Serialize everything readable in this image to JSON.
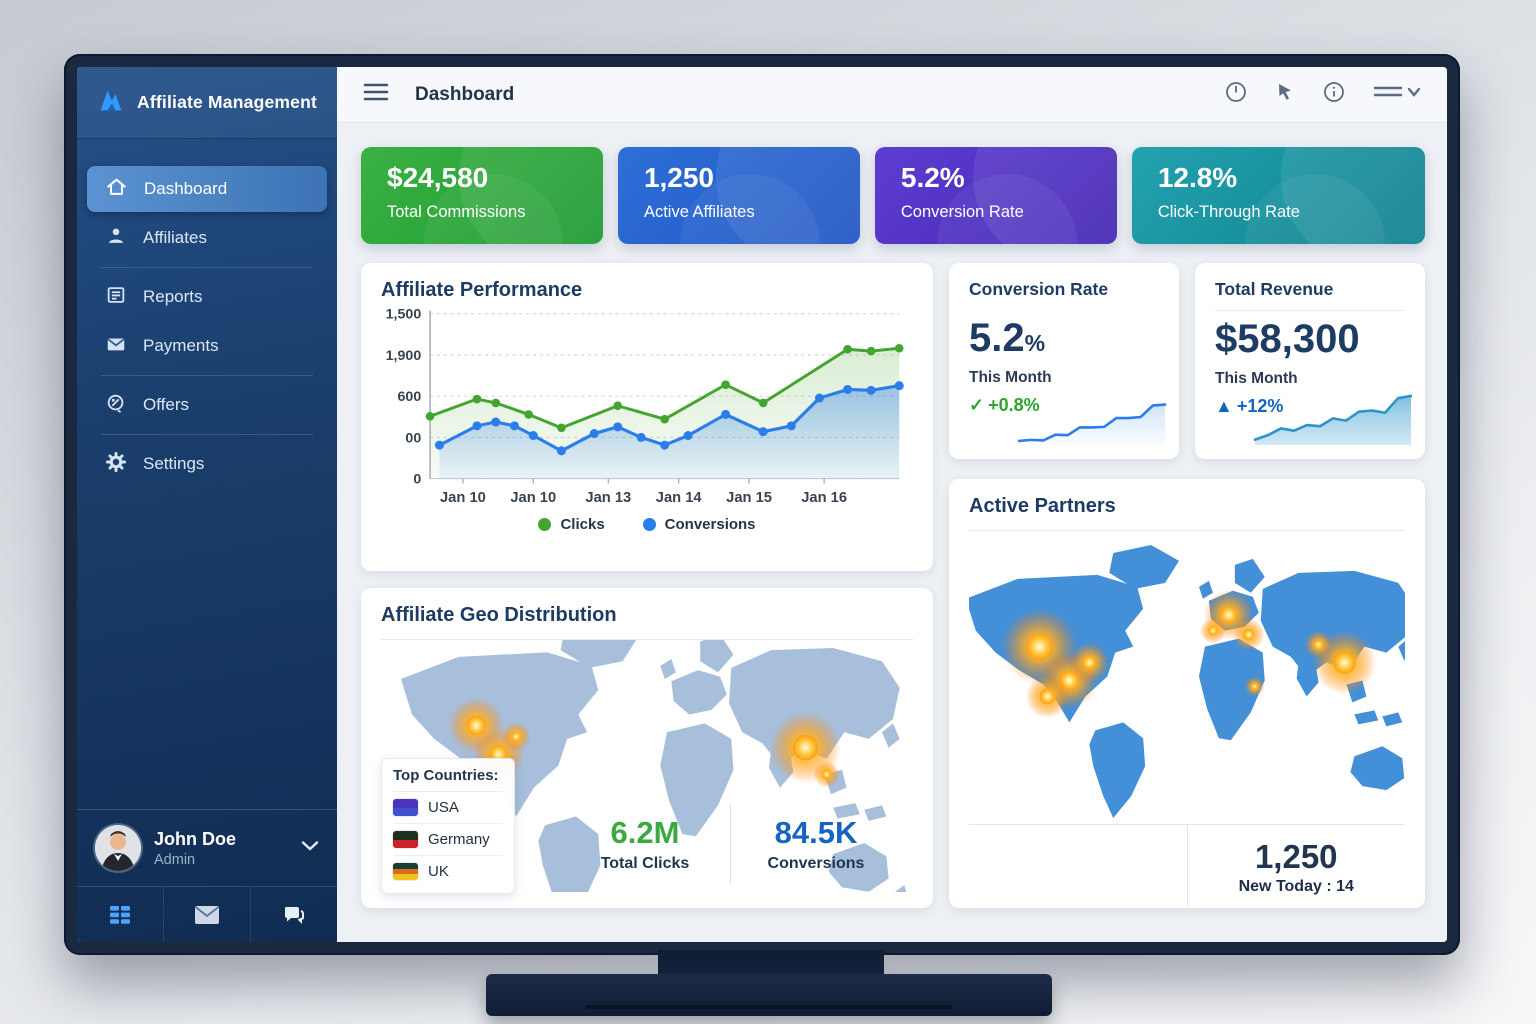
{
  "brand": {
    "name": "Affiliate Management",
    "logo_icon": "mountain-logo-icon"
  },
  "topbar": {
    "title": "Dashboard",
    "icons": [
      "hamburger-icon",
      "clock-icon",
      "cursor-icon",
      "info-icon",
      "menu-chevron-icon"
    ]
  },
  "sidebar": {
    "items": [
      {
        "label": "Dashboard",
        "icon": "home-icon",
        "active": true
      },
      {
        "label": "Affiliates",
        "icon": "person-icon",
        "active": false
      },
      {
        "label": "Reports",
        "icon": "report-icon",
        "active": false
      },
      {
        "label": "Payments",
        "icon": "envelope-icon",
        "active": false
      },
      {
        "label": "Offers",
        "icon": "offer-tag-icon",
        "active": false
      },
      {
        "label": "Settings",
        "icon": "gear-icon",
        "active": false
      }
    ],
    "user": {
      "name": "John Doe",
      "role": "Admin"
    },
    "footer_icons": [
      "grid-icon",
      "mail-icon",
      "chat-icon"
    ]
  },
  "stat_cards": [
    {
      "value": "$24,580",
      "label": "Total Commissions",
      "gradient": [
        "#3bb143",
        "#1c9a31"
      ]
    },
    {
      "value": "1,250",
      "label": "Active Affiliates",
      "gradient": [
        "#2e6fd8",
        "#1f55c2"
      ]
    },
    {
      "value": "5.2%",
      "label": "Conversion Rate",
      "gradient": [
        "#5d3ed1",
        "#4426b4"
      ]
    },
    {
      "value": "12.8%",
      "label": "Click-Through Rate",
      "gradient": [
        "#23a2af",
        "#0f818f"
      ]
    }
  ],
  "cards": {
    "performance": {
      "title": "Affiliate Performance"
    },
    "conversion": {
      "title": "Conversion Rate",
      "value": "5.2",
      "unit": "%",
      "period": "This Month",
      "delta_icon": "✓",
      "delta": "+0.8%",
      "delta_color": "#2ca52e"
    },
    "revenue": {
      "title": "Total Revenue",
      "value": "$58,300",
      "period": "This Month",
      "delta_icon": "▲",
      "delta": "+12%",
      "delta_color": "#1565c0"
    },
    "partners": {
      "title": "Active Partners",
      "count": "1,250",
      "sub": "New Today : 14"
    },
    "geo": {
      "title": "Affiliate Geo Distribution",
      "panel_title": "Top Countries:",
      "countries": [
        {
          "name": "USA",
          "flag": [
            "#4b34bb",
            "#3f51cc"
          ]
        },
        {
          "name": "Germany",
          "flag": [
            "#20301f",
            "#cc2127"
          ]
        },
        {
          "name": "UK",
          "flag": [
            "#173f38",
            "#d96a1e",
            "#eec51d"
          ]
        }
      ],
      "stats": [
        {
          "value": "6.2M",
          "label": "Total Clicks",
          "color": "#3aa93f"
        },
        {
          "value": "84.5K",
          "label": "Conversions",
          "color": "#1565c0"
        }
      ]
    }
  },
  "chart_data": [
    {
      "type": "line",
      "title": "Affiliate Performance",
      "x_ticks": [
        "Jan 10",
        "Jan 10",
        "Jan 13",
        "Jan 14",
        "Jan 15",
        "Jan 16"
      ],
      "y_tick_labels": [
        "1,500",
        "1,900",
        "600",
        "00",
        "0"
      ],
      "ylim": [
        0,
        1500
      ],
      "grid": true,
      "legend_position": "bottom",
      "series": [
        {
          "name": "Clicks",
          "color": "#43a52f",
          "points": [
            [
              0,
              567
            ],
            [
              10,
              724
            ],
            [
              14,
              689
            ],
            [
              21,
              584
            ],
            [
              28,
              462
            ],
            [
              40,
              663
            ],
            [
              50,
              541
            ],
            [
              63,
              855
            ],
            [
              71,
              689
            ],
            [
              89,
              1177
            ],
            [
              94,
              1160
            ],
            [
              100,
              1186
            ]
          ]
        },
        {
          "name": "Conversions",
          "color": "#2b7de9",
          "points": [
            [
              2,
              305
            ],
            [
              10,
              480
            ],
            [
              14,
              515
            ],
            [
              18,
              480
            ],
            [
              22,
              392
            ],
            [
              28,
              253
            ],
            [
              35,
              410
            ],
            [
              40,
              471
            ],
            [
              45,
              375
            ],
            [
              50,
              305
            ],
            [
              55,
              392
            ],
            [
              63,
              584
            ],
            [
              71,
              427
            ],
            [
              77,
              480
            ],
            [
              83,
              733
            ],
            [
              89,
              811
            ],
            [
              94,
              803
            ],
            [
              100,
              846
            ]
          ]
        }
      ]
    },
    {
      "type": "area",
      "name": "conversion-rate-sparkline",
      "color": "#2b7de9",
      "values": [
        4,
        6,
        5,
        16,
        15,
        30,
        30,
        31,
        48,
        48,
        50,
        72,
        74
      ]
    },
    {
      "type": "area",
      "name": "total-revenue-sparkline",
      "color": "#2e93cc",
      "values": [
        6,
        14,
        26,
        22,
        32,
        30,
        44,
        40,
        56,
        58,
        54,
        80,
        84
      ]
    }
  ]
}
